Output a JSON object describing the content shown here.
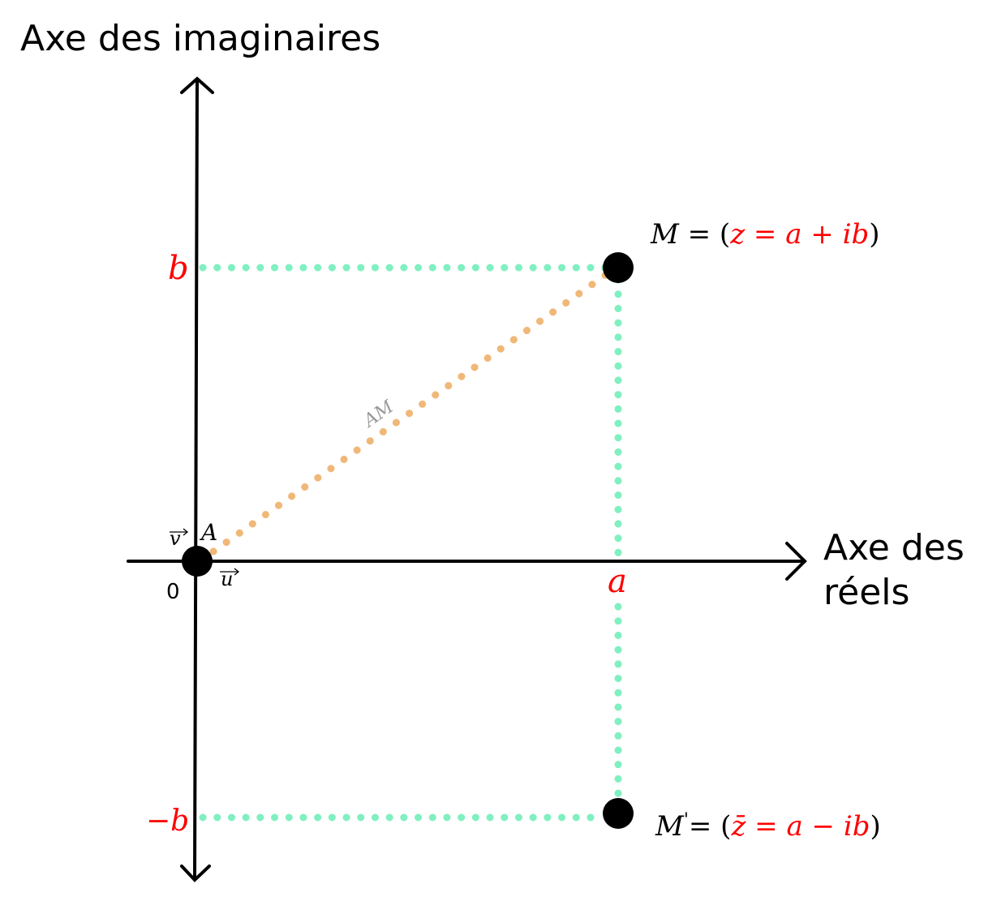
{
  "axes": {
    "imaginary_label": "Axe des imaginaires",
    "real_label_line1": "Axe des",
    "real_label_line2": "réels",
    "origin_label": "0"
  },
  "vectors": {
    "u": "u",
    "v": "v"
  },
  "points": {
    "A": {
      "name": "A"
    },
    "M": {
      "name": "M",
      "eq": " = (",
      "z": "z = a + ib",
      "close": ")"
    },
    "M_conj": {
      "name": "M",
      "prime": "'",
      "eq": "= (",
      "z": "z̄ = a − ib",
      "close": ")"
    }
  },
  "tick_labels": {
    "a": "a",
    "b": "b",
    "neg_b": "−b"
  },
  "segment_label": "AM",
  "colors": {
    "axis": "#000000",
    "guide": "#80f0c0",
    "segment": "#f0b878",
    "highlight": "#ff0000",
    "muted": "#999999"
  }
}
